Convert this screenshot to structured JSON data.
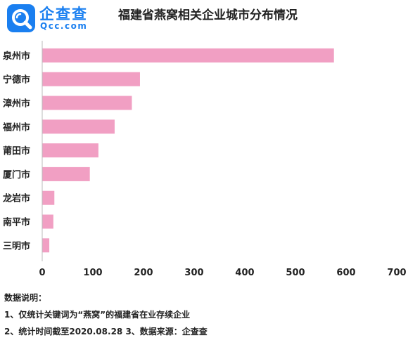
{
  "brand": {
    "name": "企查查",
    "domain": "Qcc.com",
    "color": "#1a7ff0"
  },
  "chart_data": {
    "type": "bar",
    "orientation": "horizontal",
    "title": "福建省燕窝相关企业城市分布情况",
    "categories": [
      "泉州市",
      "宁德市",
      "漳州市",
      "福州市",
      "莆田市",
      "厦门市",
      "龙岩市",
      "南平市",
      "三明市"
    ],
    "values": [
      576,
      193,
      177,
      143,
      111,
      94,
      24,
      22,
      14
    ],
    "xlim": [
      0,
      700
    ],
    "xticks": [
      "0",
      "100",
      "200",
      "300",
      "400",
      "500",
      "600",
      "700"
    ],
    "bar_color": "#f19fc3",
    "grid": false,
    "legend": "none"
  },
  "notes": {
    "heading": "数据说明：",
    "line1": "1、仅统计关键词为“燕窝”的福建省在业存续企业",
    "line2": "2、统计时间截至2020.08.28   3、数据来源：企查查"
  }
}
